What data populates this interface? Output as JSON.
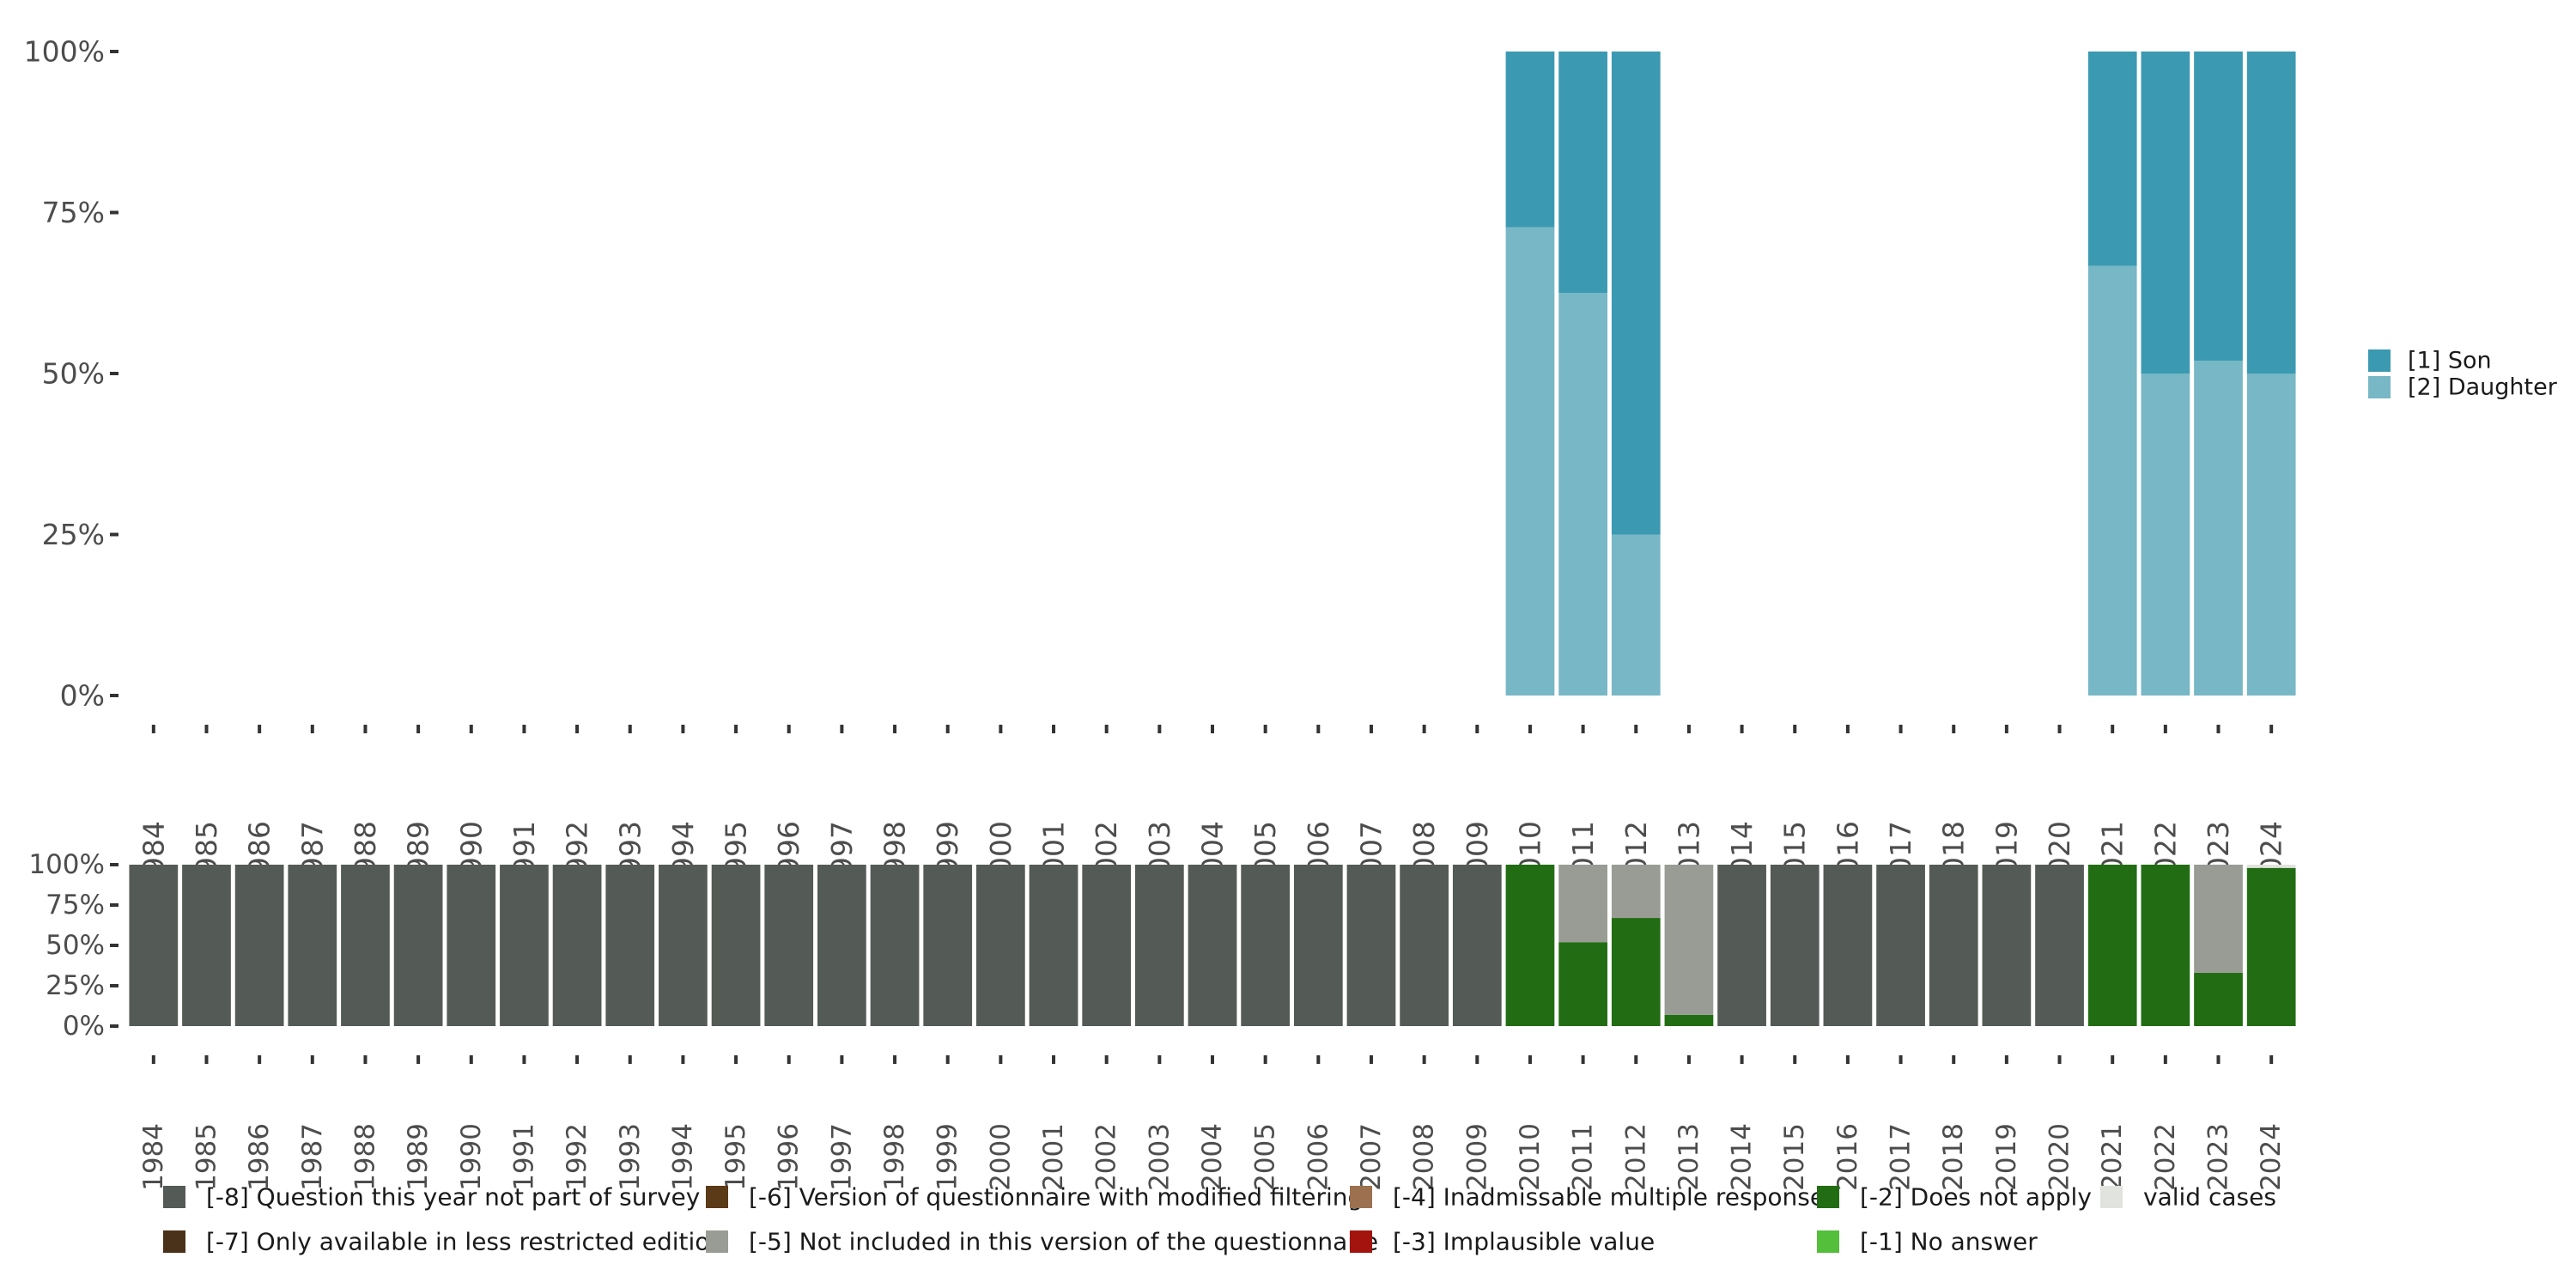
{
  "chart_data": [
    {
      "type": "bar",
      "stacked": true,
      "name": "main-chart",
      "title": "",
      "xlabel": "",
      "ylabel": "",
      "ylim": [
        0,
        100
      ],
      "yticks": [
        "0%",
        "25%",
        "50%",
        "75%",
        "100%"
      ],
      "categories": [
        "1984",
        "1985",
        "1986",
        "1987",
        "1988",
        "1989",
        "1990",
        "1991",
        "1992",
        "1993",
        "1994",
        "1995",
        "1996",
        "1997",
        "1998",
        "1999",
        "2000",
        "2001",
        "2002",
        "2003",
        "2004",
        "2005",
        "2006",
        "2007",
        "2008",
        "2009",
        "2010",
        "2011",
        "2012",
        "2013",
        "2014",
        "2015",
        "2016",
        "2017",
        "2018",
        "2019",
        "2020",
        "2021",
        "2022",
        "2023",
        "2024"
      ],
      "series": [
        {
          "name": "[2] Daughter",
          "color": "#78b7c5",
          "values": [
            0,
            0,
            0,
            0,
            0,
            0,
            0,
            0,
            0,
            0,
            0,
            0,
            0,
            0,
            0,
            0,
            0,
            0,
            0,
            0,
            0,
            0,
            0,
            0,
            0,
            0,
            72.7,
            62.5,
            25,
            0,
            0,
            0,
            0,
            0,
            0,
            0,
            0,
            66.7,
            50,
            52,
            50
          ]
        },
        {
          "name": "[1] Son",
          "color": "#3b9ab2",
          "values": [
            0,
            0,
            0,
            0,
            0,
            0,
            0,
            0,
            0,
            0,
            0,
            0,
            0,
            0,
            0,
            0,
            0,
            0,
            0,
            0,
            0,
            0,
            0,
            0,
            0,
            0,
            27.3,
            37.5,
            75,
            0,
            0,
            0,
            0,
            0,
            0,
            0,
            0,
            33.3,
            50,
            48,
            50
          ]
        }
      ],
      "legend": {
        "position": "right",
        "entries": [
          {
            "label": "[1] Son",
            "color": "#3b9ab2"
          },
          {
            "label": "[2] Daughter",
            "color": "#78b7c5"
          }
        ]
      }
    },
    {
      "type": "bar",
      "stacked": true,
      "name": "missing-chart",
      "title": "",
      "xlabel": "",
      "ylabel": "",
      "ylim": [
        0,
        100
      ],
      "yticks": [
        "0%",
        "25%",
        "50%",
        "75%",
        "100%"
      ],
      "categories": [
        "1984",
        "1985",
        "1986",
        "1987",
        "1988",
        "1989",
        "1990",
        "1991",
        "1992",
        "1993",
        "1994",
        "1995",
        "1996",
        "1997",
        "1998",
        "1999",
        "2000",
        "2001",
        "2002",
        "2003",
        "2004",
        "2005",
        "2006",
        "2007",
        "2008",
        "2009",
        "2010",
        "2011",
        "2012",
        "2013",
        "2014",
        "2015",
        "2016",
        "2017",
        "2018",
        "2019",
        "2020",
        "2021",
        "2022",
        "2023",
        "2024"
      ],
      "series": [
        {
          "name": "[-2] Does not apply",
          "color": "#226d13",
          "values": [
            0,
            0,
            0,
            0,
            0,
            0,
            0,
            0,
            0,
            0,
            0,
            0,
            0,
            0,
            0,
            0,
            0,
            0,
            0,
            0,
            0,
            0,
            0,
            0,
            0,
            0,
            100,
            52,
            67,
            7,
            0,
            0,
            0,
            0,
            0,
            0,
            0,
            100,
            100,
            33,
            98
          ]
        },
        {
          "name": "[-5] Not included in this version of the questionnaire",
          "color": "#999c94",
          "values": [
            0,
            0,
            0,
            0,
            0,
            0,
            0,
            0,
            0,
            0,
            0,
            0,
            0,
            0,
            0,
            0,
            0,
            0,
            0,
            0,
            0,
            0,
            0,
            0,
            0,
            0,
            0,
            48,
            33,
            93,
            0,
            0,
            0,
            0,
            0,
            0,
            0,
            0,
            0,
            67,
            0
          ]
        },
        {
          "name": "valid cases",
          "color": "#e1e3de",
          "values": [
            0,
            0,
            0,
            0,
            0,
            0,
            0,
            0,
            0,
            0,
            0,
            0,
            0,
            0,
            0,
            0,
            0,
            0,
            0,
            0,
            0,
            0,
            0,
            0,
            0,
            0,
            0,
            0,
            0,
            0,
            0,
            0,
            0,
            0,
            0,
            0,
            0,
            0,
            0,
            0,
            2
          ]
        },
        {
          "name": "[-8] Question this year not part of survey",
          "color": "#545a55",
          "values": [
            100,
            100,
            100,
            100,
            100,
            100,
            100,
            100,
            100,
            100,
            100,
            100,
            100,
            100,
            100,
            100,
            100,
            100,
            100,
            100,
            100,
            100,
            100,
            100,
            100,
            100,
            0,
            0,
            0,
            0,
            100,
            100,
            100,
            100,
            100,
            100,
            100,
            0,
            0,
            0,
            0
          ]
        }
      ],
      "legend": {
        "position": "bottom",
        "entries": [
          {
            "label": "[-8] Question this year not part of survey",
            "color": "#545a55"
          },
          {
            "label": "[-7] Only available in less restricted edition",
            "color": "#4a3119"
          },
          {
            "label": "[-6] Version of questionnaire with modified filtering",
            "color": "#5b3a17"
          },
          {
            "label": "[-5] Not included in this version of the questionnaire",
            "color": "#999c94"
          },
          {
            "label": "[-4] Inadmissable multiple response",
            "color": "#9b7150"
          },
          {
            "label": "[-3] Implausible value",
            "color": "#a3140f"
          },
          {
            "label": "[-2] Does not apply",
            "color": "#226d13"
          },
          {
            "label": "[-1] No answer",
            "color": "#53bf3a"
          },
          {
            "label": "valid cases",
            "color": "#e1e3de"
          }
        ]
      }
    }
  ]
}
